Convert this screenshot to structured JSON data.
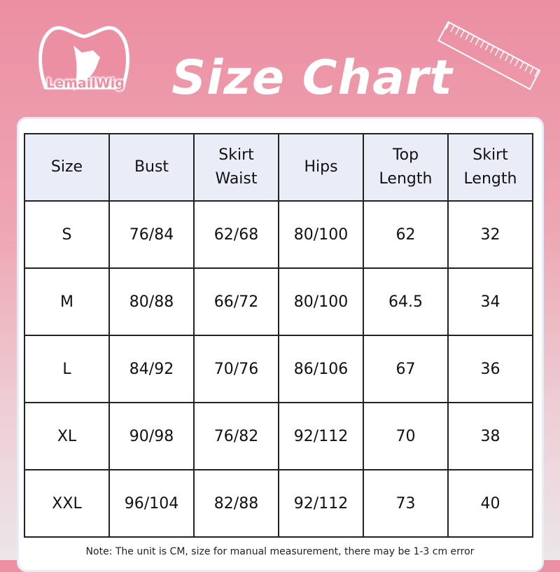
{
  "brand": {
    "logo_text": "LemailWig"
  },
  "title": "Size Chart",
  "colors": {
    "accent": "#ec8fa3",
    "header_fill": "#e9edf7"
  },
  "table": {
    "headers": [
      "Size",
      "Bust",
      "Skirt\nWaist",
      "Hips",
      "Top\nLength",
      "Skirt\nLength"
    ],
    "rows": [
      [
        "S",
        "76/84",
        "62/68",
        "80/100",
        "62",
        "32"
      ],
      [
        "M",
        "80/88",
        "66/72",
        "80/100",
        "64.5",
        "34"
      ],
      [
        "L",
        "84/92",
        "70/76",
        "86/106",
        "67",
        "36"
      ],
      [
        "XL",
        "90/98",
        "76/82",
        "92/112",
        "70",
        "38"
      ],
      [
        "XXL",
        "96/104",
        "82/88",
        "92/112",
        "73",
        "40"
      ]
    ]
  },
  "note": "Note: The unit is CM, size for manual measurement, there may be 1-3 cm error"
}
